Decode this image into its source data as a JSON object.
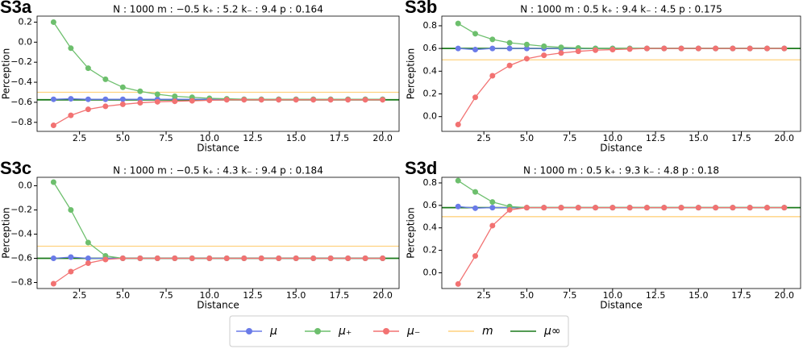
{
  "chart_data": [
    {
      "type": "line",
      "label": "S3a",
      "title": "N : 1000   m : −0.5   k₊ : 5.2   k₋ : 9.4   p : 0.164",
      "xlabel": "Distance",
      "ylabel": "Perception",
      "x": [
        1,
        2,
        3,
        4,
        5,
        6,
        7,
        8,
        9,
        10,
        11,
        12,
        13,
        14,
        15,
        16,
        17,
        18,
        19,
        20
      ],
      "xlim": [
        0.05,
        20.95
      ],
      "xticks": [
        2.5,
        {
          "value": 5,
          "label": "5.0"
        },
        7.5,
        {
          "value": 10,
          "label": "10.0"
        },
        12.5,
        {
          "value": 15,
          "label": "15.0"
        },
        17.5,
        {
          "value": 20,
          "label": "20.0"
        }
      ],
      "ylim": [
        -0.89,
        0.26
      ],
      "yticks": [
        {
          "value": -0.8,
          "label": "−0.8"
        },
        {
          "value": -0.6,
          "label": "−0.6"
        },
        {
          "value": -0.4,
          "label": "−0.4"
        },
        {
          "value": -0.2,
          "label": "−0.2"
        },
        {
          "value": 0,
          "label": "0.0"
        },
        0.2
      ],
      "series": [
        {
          "color": "#6a7be8",
          "values": [
            -0.57,
            -0.565,
            -0.57,
            -0.57,
            -0.57,
            -0.57,
            -0.57,
            -0.57,
            -0.57,
            -0.57,
            -0.57,
            -0.57,
            -0.57,
            -0.57,
            -0.57,
            -0.57,
            -0.57,
            -0.57,
            -0.57,
            -0.57
          ]
        },
        {
          "color": "#6dbf6d",
          "values": [
            0.2,
            -0.06,
            -0.26,
            -0.37,
            -0.45,
            -0.49,
            -0.52,
            -0.54,
            -0.55,
            -0.56,
            -0.565,
            -0.57,
            -0.57,
            -0.57,
            -0.57,
            -0.57,
            -0.57,
            -0.57,
            -0.57,
            -0.57
          ]
        },
        {
          "color": "#f27272",
          "values": [
            -0.83,
            -0.73,
            -0.67,
            -0.64,
            -0.62,
            -0.605,
            -0.595,
            -0.59,
            -0.585,
            -0.58,
            -0.575,
            -0.575,
            -0.575,
            -0.575,
            -0.575,
            -0.575,
            -0.575,
            -0.575,
            -0.575,
            -0.575
          ]
        }
      ],
      "hlines": [
        {
          "color": "#ffd27f",
          "value": -0.5
        },
        {
          "color": "#1a7a1a",
          "value": -0.575
        }
      ]
    },
    {
      "type": "line",
      "label": "S3b",
      "title": "N : 1000   m : 0.5   k₊ : 9.4   k₋ : 4.5   p : 0.175",
      "xlabel": "Distance",
      "ylabel": "Perception",
      "x": [
        1,
        2,
        3,
        4,
        5,
        6,
        7,
        8,
        9,
        10,
        11,
        12,
        13,
        14,
        15,
        16,
        17,
        18,
        19,
        20
      ],
      "xlim": [
        0.05,
        20.95
      ],
      "xticks": [
        2.5,
        {
          "value": 5,
          "label": "5.0"
        },
        7.5,
        {
          "value": 10,
          "label": "10.0"
        },
        12.5,
        {
          "value": 15,
          "label": "15.0"
        },
        17.5,
        {
          "value": 20,
          "label": "20.0"
        }
      ],
      "ylim": [
        -0.13,
        0.885
      ],
      "yticks": [
        {
          "value": 0,
          "label": "0.0"
        },
        0.2,
        0.4,
        0.6,
        0.8
      ],
      "series": [
        {
          "color": "#6a7be8",
          "values": [
            0.6,
            0.59,
            0.6,
            0.6,
            0.6,
            0.6,
            0.6,
            0.6,
            0.6,
            0.6,
            0.6,
            0.6,
            0.6,
            0.6,
            0.6,
            0.6,
            0.6,
            0.6,
            0.6,
            0.6
          ]
        },
        {
          "color": "#6dbf6d",
          "values": [
            0.82,
            0.73,
            0.68,
            0.65,
            0.635,
            0.62,
            0.61,
            0.605,
            0.6,
            0.6,
            0.6,
            0.6,
            0.6,
            0.6,
            0.6,
            0.6,
            0.6,
            0.6,
            0.6,
            0.6
          ]
        },
        {
          "color": "#f27272",
          "values": [
            -0.07,
            0.17,
            0.36,
            0.45,
            0.51,
            0.54,
            0.56,
            0.575,
            0.585,
            0.59,
            0.595,
            0.6,
            0.6,
            0.6,
            0.6,
            0.6,
            0.6,
            0.6,
            0.6,
            0.6
          ]
        }
      ],
      "hlines": [
        {
          "color": "#ffd27f",
          "value": 0.5
        },
        {
          "color": "#1a7a1a",
          "value": 0.6
        }
      ]
    },
    {
      "type": "line",
      "label": "S3c",
      "title": "N : 1000   m : −0.5   k₊ : 4.3   k₋ : 9.4   p : 0.184",
      "xlabel": "Distance",
      "ylabel": "Perception",
      "x": [
        1,
        2,
        3,
        4,
        5,
        6,
        7,
        8,
        9,
        10,
        11,
        12,
        13,
        14,
        15,
        16,
        17,
        18,
        19,
        20
      ],
      "xlim": [
        0.05,
        20.95
      ],
      "xticks": [
        2.5,
        {
          "value": 5,
          "label": "5.0"
        },
        7.5,
        {
          "value": 10,
          "label": "10.0"
        },
        12.5,
        {
          "value": 15,
          "label": "15.0"
        },
        17.5,
        {
          "value": 20,
          "label": "20.0"
        }
      ],
      "ylim": [
        -0.85,
        0.07
      ],
      "yticks": [
        {
          "value": -0.8,
          "label": "−0.8"
        },
        {
          "value": -0.6,
          "label": "−0.6"
        },
        {
          "value": -0.4,
          "label": "−0.4"
        },
        {
          "value": -0.2,
          "label": "−0.2"
        },
        {
          "value": 0,
          "label": "0.0"
        }
      ],
      "series": [
        {
          "color": "#6a7be8",
          "values": [
            -0.6,
            -0.59,
            -0.6,
            -0.6,
            -0.6,
            -0.6,
            -0.6,
            -0.6,
            -0.6,
            -0.6,
            -0.6,
            -0.6,
            -0.6,
            -0.6,
            -0.6,
            -0.6,
            -0.6,
            -0.6,
            -0.6,
            -0.6
          ]
        },
        {
          "color": "#6dbf6d",
          "values": [
            0.03,
            -0.2,
            -0.47,
            -0.58,
            -0.6,
            -0.6,
            -0.6,
            -0.6,
            -0.6,
            -0.6,
            -0.6,
            -0.6,
            -0.6,
            -0.6,
            -0.6,
            -0.6,
            -0.6,
            -0.6,
            -0.6,
            -0.6
          ]
        },
        {
          "color": "#f27272",
          "values": [
            -0.81,
            -0.71,
            -0.64,
            -0.61,
            -0.6,
            -0.6,
            -0.6,
            -0.6,
            -0.6,
            -0.6,
            -0.6,
            -0.6,
            -0.6,
            -0.6,
            -0.6,
            -0.6,
            -0.6,
            -0.6,
            -0.6,
            -0.6
          ]
        }
      ],
      "hlines": [
        {
          "color": "#ffd27f",
          "value": -0.5
        },
        {
          "color": "#1a7a1a",
          "value": -0.6
        }
      ]
    },
    {
      "type": "line",
      "label": "S3d",
      "title": "N : 1000   m : 0.5   k₊ : 9.3   k₋ : 4.8   p : 0.18",
      "xlabel": "Distance",
      "ylabel": "Perception",
      "x": [
        1,
        2,
        3,
        4,
        5,
        6,
        7,
        8,
        9,
        10,
        11,
        12,
        13,
        14,
        15,
        16,
        17,
        18,
        19,
        20
      ],
      "xlim": [
        0.05,
        20.95
      ],
      "xticks": [
        2.5,
        {
          "value": 5,
          "label": "5.0"
        },
        7.5,
        {
          "value": 10,
          "label": "10.0"
        },
        12.5,
        {
          "value": 15,
          "label": "15.0"
        },
        17.5,
        {
          "value": 20,
          "label": "20.0"
        }
      ],
      "ylim": [
        -0.14,
        0.85
      ],
      "yticks": [
        {
          "value": 0,
          "label": "0.0"
        },
        0.2,
        0.4,
        0.6,
        0.8
      ],
      "series": [
        {
          "color": "#6a7be8",
          "values": [
            0.59,
            0.575,
            0.58,
            0.58,
            0.58,
            0.58,
            0.58,
            0.58,
            0.58,
            0.58,
            0.58,
            0.58,
            0.58,
            0.58,
            0.58,
            0.58,
            0.58,
            0.58,
            0.58,
            0.58
          ]
        },
        {
          "color": "#6dbf6d",
          "values": [
            0.82,
            0.72,
            0.63,
            0.59,
            0.58,
            0.58,
            0.58,
            0.58,
            0.58,
            0.58,
            0.58,
            0.58,
            0.58,
            0.58,
            0.58,
            0.58,
            0.58,
            0.58,
            0.58,
            0.58
          ]
        },
        {
          "color": "#f27272",
          "values": [
            -0.1,
            0.15,
            0.42,
            0.56,
            0.58,
            0.58,
            0.58,
            0.58,
            0.58,
            0.58,
            0.58,
            0.58,
            0.58,
            0.58,
            0.58,
            0.58,
            0.58,
            0.58,
            0.58,
            0.58
          ]
        }
      ],
      "hlines": [
        {
          "color": "#ffd27f",
          "value": 0.5
        },
        {
          "color": "#1a7a1a",
          "value": 0.58
        }
      ]
    }
  ],
  "legend": [
    {
      "name": "μ",
      "color": "#6a7be8",
      "marker": true
    },
    {
      "name": "μ₊",
      "color": "#6dbf6d",
      "marker": true
    },
    {
      "name": "μ₋",
      "color": "#f27272",
      "marker": true
    },
    {
      "name": "m",
      "color": "#ffd27f",
      "marker": false
    },
    {
      "name": "μ∞",
      "color": "#1a7a1a",
      "marker": false
    }
  ]
}
